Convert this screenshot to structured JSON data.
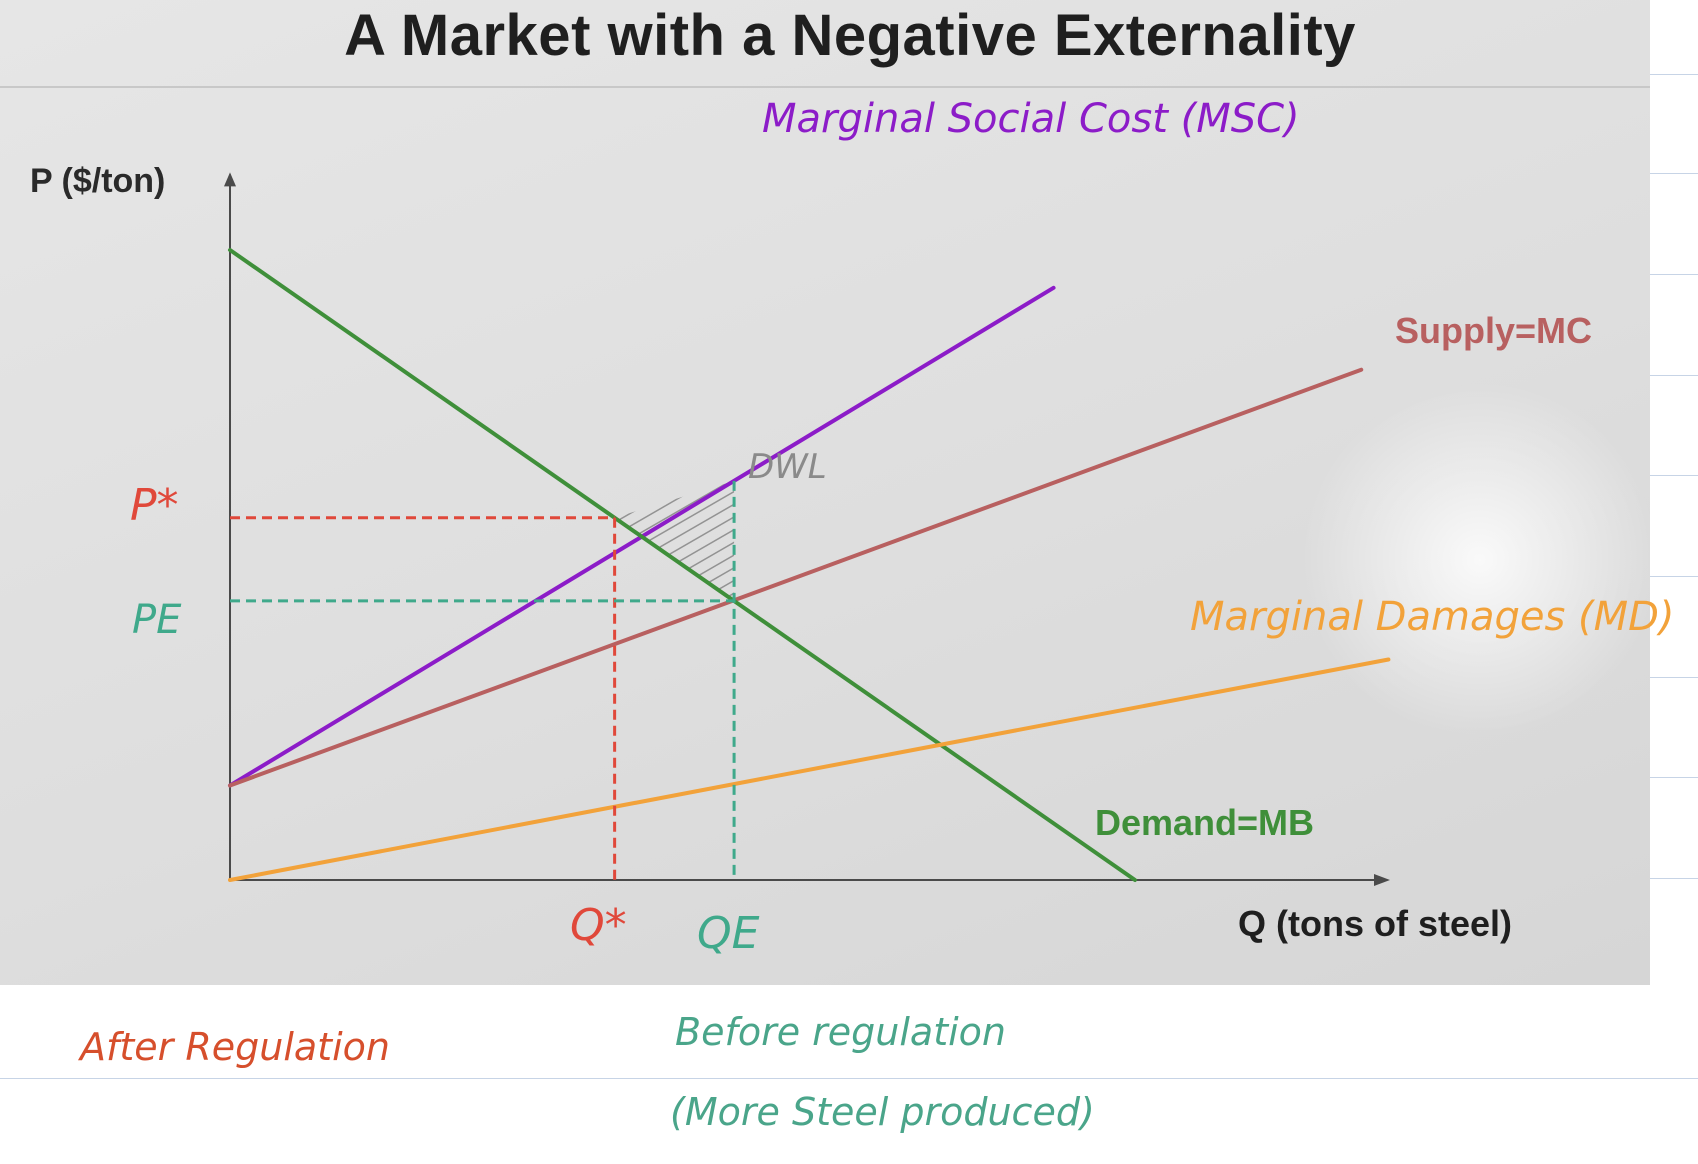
{
  "slide_title": "A Market with a Negative Externality",
  "notes": {
    "after": "After Regulation",
    "before": "Before regulation",
    "more_steel": "(More Steel produced)"
  },
  "colors": {
    "msc": "#8c1cc8",
    "supply": "#b86060",
    "demand": "#3f8f3a",
    "md": "#f2a23a",
    "star": "#e0483a",
    "equilibrium": "#3fa98b",
    "dwl": "#8a8a8a",
    "axis": "#4a4a4a"
  },
  "chart_data": {
    "type": "line",
    "title": "A Market with a Negative Externality",
    "xlabel": "Q (tons of steel)",
    "ylabel": "P ($/ton)",
    "xlim": [
      0,
      100
    ],
    "ylim": [
      0,
      100
    ],
    "series": [
      {
        "name": "Marginal Social Cost (MSC)",
        "x": [
          0,
          91
        ],
        "y": [
          15,
          94
        ],
        "color": "#8c1cc8"
      },
      {
        "name": "Supply=MC",
        "x": [
          0,
          125
        ],
        "y": [
          15,
          81
        ],
        "color": "#b86060"
      },
      {
        "name": "Demand=MB",
        "x": [
          0,
          100
        ],
        "y": [
          100,
          0
        ],
        "color": "#3f8f3a"
      },
      {
        "name": "Marginal Damages (MD)",
        "x": [
          0,
          128
        ],
        "y": [
          0,
          35
        ],
        "color": "#f2a23a"
      }
    ],
    "points": {
      "optimum": {
        "q_label": "Q*",
        "p_label": "P*",
        "q": 42.5,
        "p": 57.5
      },
      "market": {
        "q_label": "QE",
        "p_label": "PE",
        "q": 55.7,
        "p": 44.3
      }
    },
    "annotations": {
      "dwl": "DWL"
    }
  }
}
